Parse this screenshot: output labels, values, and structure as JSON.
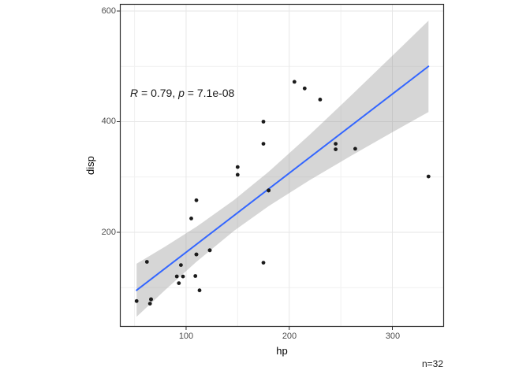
{
  "figure": {
    "annotation": {
      "r_label": "R",
      "r_value_text": " = 0.79, ",
      "p_label": "p",
      "p_value_text": " = 7.1e-08"
    },
    "sample_size": "n=32"
  },
  "chart_data": {
    "type": "scatter",
    "title": "",
    "xlabel": "hp",
    "ylabel": "disp",
    "xlim": [
      35.8,
      350.1
    ],
    "ylim": [
      29.2,
      612.8
    ],
    "grid": true,
    "x_major_ticks": [
      100,
      200,
      300
    ],
    "y_major_ticks": [
      200,
      400,
      600
    ],
    "x_tick_labels": [
      "100",
      "200",
      "300"
    ],
    "y_tick_labels": [
      "200",
      "400",
      "600"
    ],
    "x_minor_gridlines": [
      50,
      150,
      250
    ],
    "y_minor_gridlines": [
      100,
      300,
      500
    ],
    "stats": {
      "R": 0.79,
      "p": "7.1e-08",
      "n": 32
    },
    "points": [
      [
        110,
        160
      ],
      [
        110,
        160
      ],
      [
        93,
        108
      ],
      [
        110,
        258
      ],
      [
        175,
        360
      ],
      [
        105,
        225
      ],
      [
        245,
        360
      ],
      [
        62,
        146.7
      ],
      [
        95,
        140.8
      ],
      [
        123,
        167.6
      ],
      [
        123,
        167.6
      ],
      [
        180,
        275.8
      ],
      [
        180,
        275.8
      ],
      [
        180,
        275.8
      ],
      [
        205,
        472
      ],
      [
        215,
        460
      ],
      [
        230,
        440
      ],
      [
        66,
        78.7
      ],
      [
        52,
        75.7
      ],
      [
        65,
        71.1
      ],
      [
        97,
        120.1
      ],
      [
        150,
        318
      ],
      [
        150,
        304
      ],
      [
        245,
        350
      ],
      [
        175,
        400
      ],
      [
        66,
        79
      ],
      [
        91,
        120.3
      ],
      [
        113,
        95.1
      ],
      [
        264,
        351
      ],
      [
        175,
        145
      ],
      [
        335,
        301
      ],
      [
        109,
        121
      ]
    ],
    "regression_line": {
      "x": [
        52,
        335
      ],
      "y": [
        95.3,
        500.0
      ]
    },
    "confidence_ribbon": {
      "x": [
        52,
        80,
        110,
        146.7,
        180,
        220,
        260,
        300,
        335
      ],
      "upper": [
        143.2,
        174.5,
        210.0,
        258.6,
        309.4,
        376.7,
        447.2,
        519.1,
        582.5
      ],
      "lower": [
        47.3,
        96.3,
        146.6,
        203.0,
        247.4,
        294.5,
        338.4,
        380.9,
        417.5
      ]
    },
    "colors": {
      "point": "#1b1b1b",
      "line": "#3366FF",
      "ribbon": "#9e9e9e",
      "ribbon_opacity": 0.42,
      "grid_major": "#e6e6e6",
      "grid_minor": "#f1f1f1",
      "panel_border": "#2b2b2b",
      "tick_mark": "#2b2b2b",
      "tick_text": "#4d4d4d"
    }
  }
}
